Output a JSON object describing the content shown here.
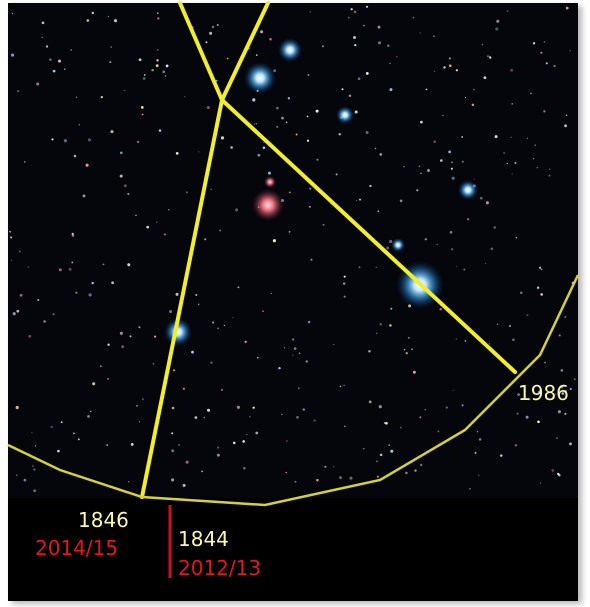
{
  "annotations": {
    "line_label": "1986",
    "left": {
      "year": "1846",
      "range": "2014/15"
    },
    "right": {
      "year": "1844",
      "range": "2012/13"
    }
  }
}
